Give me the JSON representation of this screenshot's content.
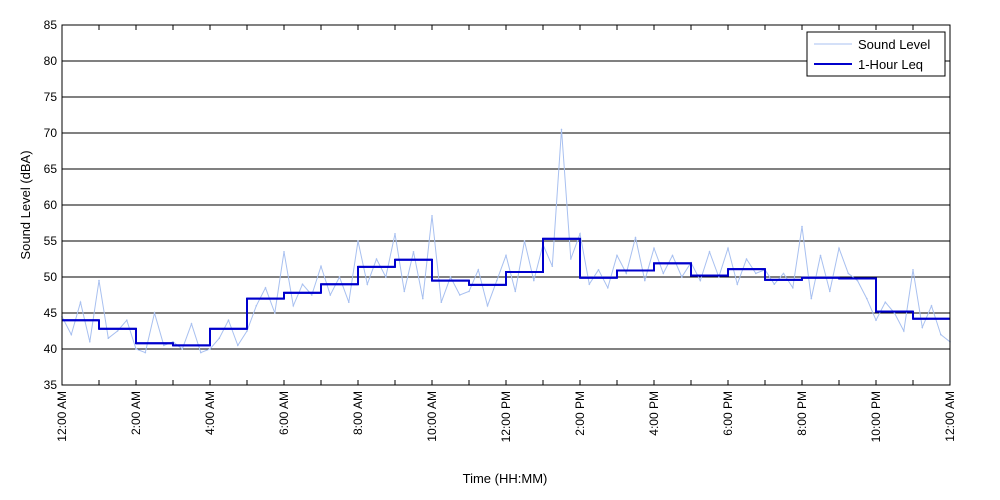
{
  "chart_data": {
    "type": "line",
    "title": "",
    "xlabel": "Time (HH:MM)",
    "ylabel": "Sound Level (dBA)",
    "ylim": [
      35,
      85
    ],
    "yticks": [
      35,
      40,
      45,
      50,
      55,
      60,
      65,
      70,
      75,
      80,
      85
    ],
    "xlim": [
      0,
      24
    ],
    "xticks": [
      {
        "hour": 0,
        "label": "12:00 AM"
      },
      {
        "hour": 2,
        "label": "2:00 AM"
      },
      {
        "hour": 4,
        "label": "4:00 AM"
      },
      {
        "hour": 6,
        "label": "6:00 AM"
      },
      {
        "hour": 8,
        "label": "8:00 AM"
      },
      {
        "hour": 10,
        "label": "10:00 AM"
      },
      {
        "hour": 12,
        "label": "12:00 PM"
      },
      {
        "hour": 14,
        "label": "2:00 PM"
      },
      {
        "hour": 16,
        "label": "4:00 PM"
      },
      {
        "hour": 18,
        "label": "6:00 PM"
      },
      {
        "hour": 20,
        "label": "8:00 PM"
      },
      {
        "hour": 22,
        "label": "10:00 PM"
      },
      {
        "hour": 24,
        "label": "12:00 AM"
      }
    ],
    "grid": "horizontal",
    "legend": "top-right",
    "series": [
      {
        "name": "Sound Level",
        "color": "#a8c0f0",
        "style": "thin-line",
        "x": [
          0.0,
          0.25,
          0.5,
          0.75,
          1.0,
          1.25,
          1.5,
          1.75,
          2.0,
          2.25,
          2.5,
          2.75,
          3.0,
          3.25,
          3.5,
          3.75,
          4.0,
          4.25,
          4.5,
          4.75,
          5.0,
          5.25,
          5.5,
          5.75,
          6.0,
          6.25,
          6.5,
          6.75,
          7.0,
          7.25,
          7.5,
          7.75,
          8.0,
          8.25,
          8.5,
          8.75,
          9.0,
          9.25,
          9.5,
          9.75,
          10.0,
          10.25,
          10.5,
          10.75,
          11.0,
          11.25,
          11.5,
          11.75,
          12.0,
          12.25,
          12.5,
          12.75,
          13.0,
          13.25,
          13.5,
          13.75,
          14.0,
          14.25,
          14.5,
          14.75,
          15.0,
          15.25,
          15.5,
          15.75,
          16.0,
          16.25,
          16.5,
          16.75,
          17.0,
          17.25,
          17.5,
          17.75,
          18.0,
          18.25,
          18.5,
          18.75,
          19.0,
          19.25,
          19.5,
          19.75,
          20.0,
          20.25,
          20.5,
          20.75,
          21.0,
          21.25,
          21.5,
          21.75,
          22.0,
          22.25,
          22.5,
          22.75,
          23.0,
          23.25,
          23.5,
          23.75,
          24.0
        ],
        "values": [
          44.5,
          42.0,
          46.5,
          41.0,
          49.5,
          41.5,
          42.5,
          44.0,
          40.0,
          39.5,
          45.0,
          40.5,
          41.0,
          40.0,
          43.5,
          39.5,
          40.0,
          41.5,
          44.0,
          40.5,
          42.5,
          46.0,
          48.5,
          45.0,
          53.5,
          46.0,
          49.0,
          47.5,
          51.5,
          47.5,
          50.0,
          46.5,
          55.0,
          49.0,
          52.5,
          50.0,
          56.0,
          48.0,
          53.5,
          47.0,
          58.5,
          46.5,
          50.0,
          47.5,
          48.0,
          51.0,
          46.0,
          49.5,
          53.0,
          48.0,
          55.0,
          49.5,
          54.5,
          51.5,
          70.5,
          52.5,
          56.0,
          49.0,
          51.0,
          48.5,
          53.0,
          50.5,
          55.5,
          49.5,
          54.0,
          50.5,
          53.0,
          50.0,
          52.0,
          49.5,
          53.5,
          50.0,
          54.0,
          49.0,
          52.5,
          50.5,
          51.0,
          49.0,
          50.5,
          48.5,
          57.0,
          47.0,
          53.0,
          48.0,
          54.0,
          50.5,
          49.5,
          47.0,
          44.0,
          46.5,
          45.0,
          42.5,
          51.0,
          43.0,
          46.0,
          42.0,
          41.0
        ]
      },
      {
        "name": "1-Hour Leq",
        "color": "#0000cc",
        "style": "step",
        "x": [
          0,
          1,
          2,
          3,
          4,
          5,
          6,
          7,
          8,
          9,
          10,
          11,
          12,
          13,
          14,
          15,
          16,
          17,
          18,
          19,
          20,
          21,
          22,
          23
        ],
        "values": [
          44.0,
          42.8,
          40.8,
          40.5,
          42.8,
          47.0,
          47.8,
          49.0,
          51.4,
          52.4,
          49.5,
          48.9,
          50.7,
          55.3,
          49.9,
          50.9,
          51.9,
          50.2,
          51.1,
          49.6,
          49.9,
          49.8,
          45.2,
          44.2
        ]
      }
    ]
  }
}
